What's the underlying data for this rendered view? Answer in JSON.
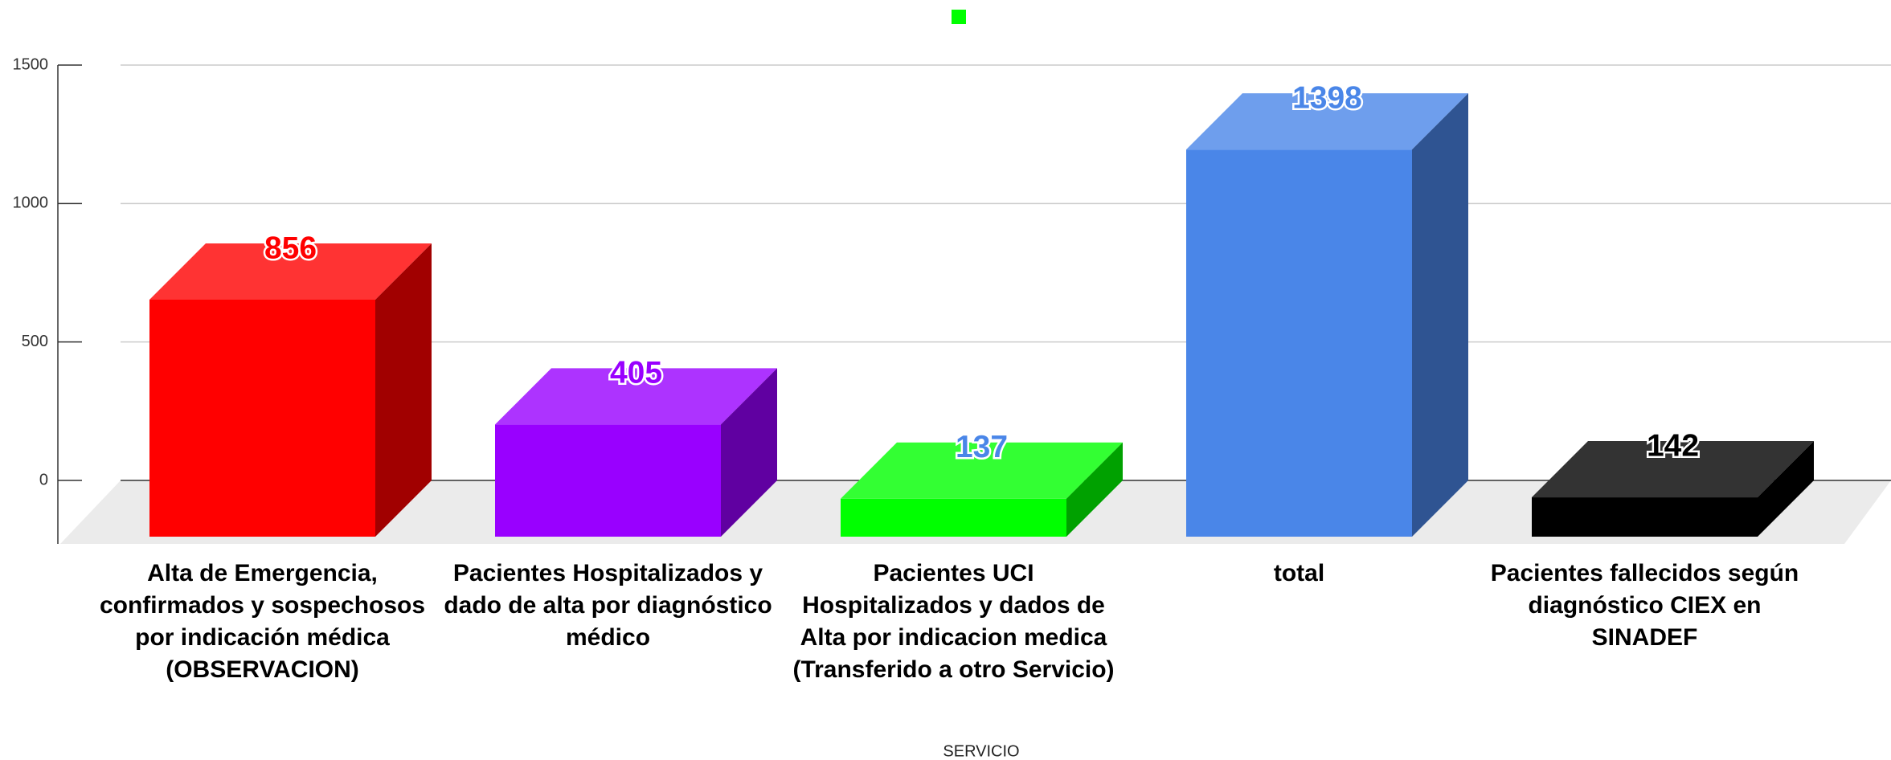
{
  "chart_data": {
    "type": "bar3d",
    "categories": [
      "Alta de Emergencia, confirmados y sospechosos  por indicación médica (OBSERVACION)",
      "Pacientes Hospitalizados y dado de alta por diagnóstico médico",
      "Pacientes UCI Hospitalizados y dados de Alta por indicacion medica (Transferido a otro Servicio)",
      "total",
      "Pacientes fallecidos según diagnóstico CIEX en SINADEF"
    ],
    "values": [
      856,
      405,
      137,
      1398,
      142
    ],
    "colors": [
      "#ff0000",
      "#9900ff",
      "#00ff00",
      "#4a86e8",
      "#000000"
    ],
    "label_colors": [
      "#ff0000",
      "#9900ff",
      "#4a86e8",
      "#4a86e8",
      "#000000"
    ],
    "x_label": "SERVICIO",
    "ylim": [
      0,
      1500
    ],
    "yticks": [
      0,
      500,
      1000,
      1500
    ],
    "grid": true
  }
}
